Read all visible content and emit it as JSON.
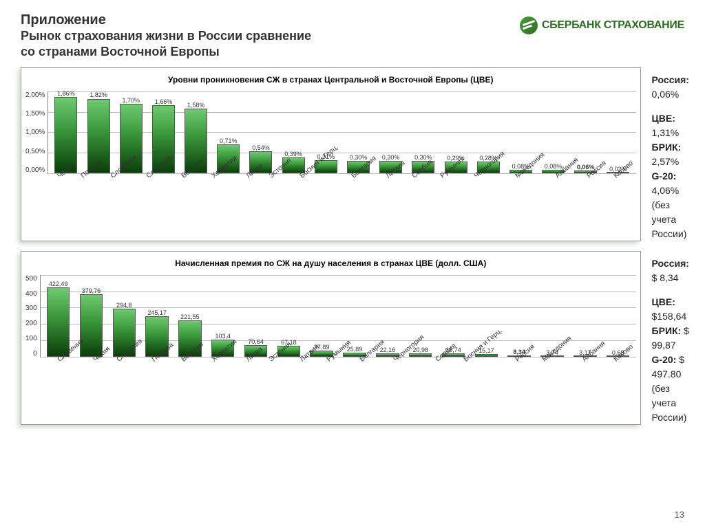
{
  "header": {
    "title": "Приложение",
    "subtitle": "Рынок страхования жизни в России сравнение\nсо странами Восточной  Европы",
    "logo_text": "СБЕРБАНК СТРАХОВАНИЕ"
  },
  "chart1": {
    "title": "Уровни проникновения СЖ в странах Центральной и Восточной Европы (ЦВЕ)",
    "type": "bar",
    "ymax": 2.0,
    "yticks": [
      "2,00%",
      "1,50%",
      "1,00%",
      "0,50%",
      "0,00%"
    ],
    "highlight_index": 16,
    "categories": [
      "Чехия",
      "Польша",
      "Словения",
      "Словакия",
      "Венгрия",
      "Хорватия",
      "Литва",
      "Эстония",
      "Босния и Герц.",
      "Болгария",
      "Латвия",
      "Сербия",
      "Румыния",
      "Черногория",
      "Македония",
      "Албания",
      "Россия",
      "Косово"
    ],
    "values": [
      1.86,
      1.82,
      1.7,
      1.66,
      1.58,
      0.71,
      0.54,
      0.39,
      0.31,
      0.3,
      0.3,
      0.3,
      0.29,
      0.28,
      0.08,
      0.08,
      0.06,
      0.02
    ],
    "labels": [
      "1,86%",
      "1,82%",
      "1,70%",
      "1,66%",
      "1,58%",
      "0,71%",
      "0,54%",
      "0,39%",
      "0,31%",
      "0,30%",
      "0,30%",
      "0,30%",
      "0,29%",
      "0,28%",
      "0,08%",
      "0,08%",
      "0,06%",
      "0,02%"
    ],
    "bar_gradient": [
      "#0a3d0a",
      "#3d9b3d",
      "#6fc96f"
    ],
    "grid_color": "#bbbbbb"
  },
  "stats1": {
    "rows": [
      {
        "label": "Россия:",
        "value": " 0,06%"
      },
      {
        "spacer": true
      },
      {
        "label": "ЦВЕ:",
        "value": " 1,31%"
      },
      {
        "label": "БРИК:",
        "value": " 2,57%"
      },
      {
        "label": "G-20:",
        "value": " 4,06%"
      }
    ],
    "note": "(без учета России)"
  },
  "chart2": {
    "title": "Начисленная премия по СЖ на душу населения в странах ЦВЕ (долл. США)",
    "type": "bar",
    "ymax": 500,
    "yticks": [
      "500",
      "400",
      "300",
      "200",
      "100",
      "0"
    ],
    "highlight_index": 14,
    "categories": [
      "Словения",
      "Чехия",
      "Словакия",
      "Польша",
      "Венгрия",
      "Хорватия",
      "Литва",
      "Эстония",
      "Латвия",
      "Румыния",
      "Болгария",
      "Черногория",
      "Сербия",
      "Босния и Герц.",
      "Россия",
      "Македония",
      "Албания",
      "Косово"
    ],
    "values": [
      422.49,
      379.76,
      294.8,
      245.17,
      221.55,
      103.4,
      70.64,
      67.18,
      37.89,
      25.89,
      22.16,
      20.98,
      18.74,
      15.17,
      8.34,
      3.74,
      3.17,
      0.68
    ],
    "labels": [
      "422,49",
      "379,76",
      "294,8",
      "245,17",
      "221,55",
      "103,4",
      "70,64",
      "67,18",
      "37,89",
      "25,89",
      "22,16",
      "20,98",
      "18,74",
      "15,17",
      "8,34",
      "3,74",
      "3,17",
      "0,68"
    ],
    "bar_gradient": [
      "#0a3d0a",
      "#3d9b3d",
      "#6fc96f"
    ],
    "grid_color": "#bbbbbb"
  },
  "stats2": {
    "rows": [
      {
        "label": "Россия:",
        "value": " $ 8,34"
      },
      {
        "spacer": true
      },
      {
        "label": "ЦВЕ:",
        "value": " $158,64"
      },
      {
        "label": "БРИК:",
        "value": " $ 99,87"
      },
      {
        "label": "G-20:",
        "value": " $ 497.80"
      }
    ],
    "note": "(без учета России)"
  },
  "page_number": "13"
}
